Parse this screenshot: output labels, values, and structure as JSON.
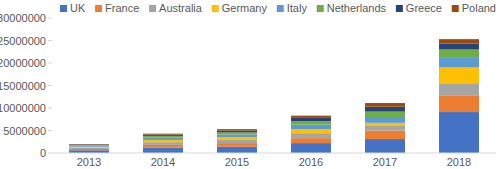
{
  "chart_data": {
    "type": "bar",
    "stacked": true,
    "legend": "top",
    "grid": false,
    "categories": [
      "2013",
      "2014",
      "2015",
      "2016",
      "2017",
      "2018"
    ],
    "ylim": [
      0,
      30000000
    ],
    "yticks": [
      0,
      5000000,
      10000000,
      15000000,
      20000000,
      25000000,
      30000000
    ],
    "series": [
      {
        "name": "UK",
        "color": "#4472c4",
        "values": [
          600000,
          1200000,
          1400000,
          2200000,
          3100000,
          9100000
        ]
      },
      {
        "name": "France",
        "color": "#ed7d31",
        "values": [
          300000,
          600000,
          800000,
          1100000,
          1900000,
          3600000
        ]
      },
      {
        "name": "Australia",
        "color": "#a5a5a5",
        "values": [
          300000,
          600000,
          700000,
          1100000,
          1000000,
          2800000
        ]
      },
      {
        "name": "Germany",
        "color": "#ffc000",
        "values": [
          200000,
          500000,
          600000,
          900000,
          700000,
          3500000
        ]
      },
      {
        "name": "Italy",
        "color": "#5b9bd5",
        "values": [
          200000,
          500000,
          600000,
          1000000,
          1300000,
          2300000
        ]
      },
      {
        "name": "Netherlands",
        "color": "#70ad47",
        "values": [
          200000,
          400000,
          500000,
          800000,
          1200000,
          1700000
        ]
      },
      {
        "name": "Greece",
        "color": "#264478",
        "values": [
          100000,
          300000,
          400000,
          700000,
          1100000,
          1300000
        ]
      },
      {
        "name": "Poland",
        "color": "#9e480e",
        "values": [
          100000,
          200000,
          300000,
          500000,
          800000,
          1000000
        ]
      }
    ]
  }
}
